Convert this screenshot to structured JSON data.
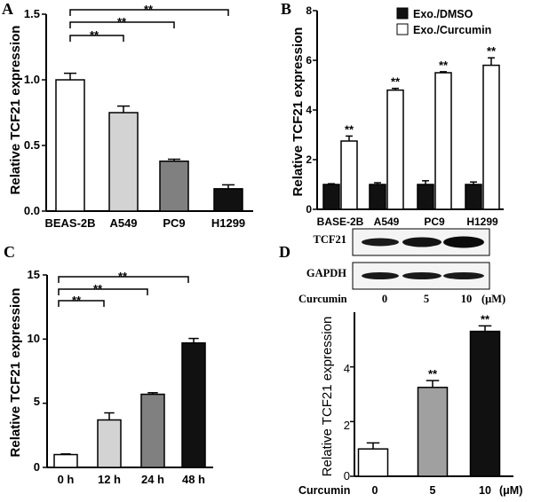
{
  "figure": {
    "panel_letters": [
      "A",
      "B",
      "C",
      "D"
    ]
  },
  "chart_data": [
    {
      "panel": "A",
      "type": "bar",
      "title": "",
      "xlabel": "",
      "ylabel": "Relative TCF21 expression",
      "categories": [
        "BEAS-2B",
        "A549",
        "PC9",
        "H1299"
      ],
      "values": [
        1.0,
        0.75,
        0.38,
        0.17
      ],
      "errors": [
        0.05,
        0.05,
        0.015,
        0.03
      ],
      "colors": [
        "#ffffff",
        "#d3d3d3",
        "#808080",
        "#111111"
      ],
      "ylim": [
        0,
        1.5
      ],
      "yticks": [
        "0.0",
        "0.5",
        "1.0",
        "1.5"
      ],
      "significance": [
        {
          "from": 0,
          "to": 1,
          "label": "**"
        },
        {
          "from": 0,
          "to": 2,
          "label": "**"
        },
        {
          "from": 0,
          "to": 3,
          "label": "**"
        }
      ]
    },
    {
      "panel": "B",
      "type": "bar",
      "title": "",
      "xlabel": "",
      "ylabel": "Relative TCF21 expression",
      "categories": [
        "BASE-2B",
        "A549",
        "PC9",
        "H1299"
      ],
      "ylim": [
        0,
        8
      ],
      "yticks": [
        "0",
        "2",
        "4",
        "6",
        "8"
      ],
      "legend_position": "top-right",
      "series": [
        {
          "name": "Exo./DMSO",
          "color": "#111111",
          "values": [
            1.0,
            1.0,
            1.0,
            1.0
          ],
          "errors": [
            0.03,
            0.07,
            0.15,
            0.1
          ]
        },
        {
          "name": "Exo./Curcumin",
          "color": "#ffffff",
          "values": [
            2.75,
            4.8,
            5.5,
            5.8
          ],
          "errors": [
            0.2,
            0.07,
            0.04,
            0.3
          ]
        }
      ],
      "significance_labels": [
        "**",
        "**",
        "**",
        "**"
      ]
    },
    {
      "panel": "C",
      "type": "bar",
      "title": "",
      "xlabel": "",
      "ylabel": "Relative TCF21 expression",
      "categories": [
        "0 h",
        "12 h",
        "24 h",
        "48 h"
      ],
      "values": [
        1.0,
        3.7,
        5.7,
        9.7
      ],
      "errors": [
        0.05,
        0.55,
        0.12,
        0.35
      ],
      "colors": [
        "#ffffff",
        "#d3d3d3",
        "#808080",
        "#111111"
      ],
      "ylim": [
        0,
        15
      ],
      "yticks": [
        "0",
        "5",
        "10",
        "15"
      ],
      "significance": [
        {
          "from": 0,
          "to": 1,
          "label": "**"
        },
        {
          "from": 0,
          "to": 2,
          "label": "**"
        },
        {
          "from": 0,
          "to": 3,
          "label": "**"
        }
      ]
    },
    {
      "panel": "D",
      "type": "bar",
      "title": "",
      "xlabel": "",
      "ylabel": "Relative TCF21 expression",
      "x_prefix_label": "Curcumin",
      "categories": [
        "0",
        "5",
        "10"
      ],
      "unit_label": "(μM)",
      "values": [
        1.0,
        3.25,
        5.3
      ],
      "errors": [
        0.22,
        0.25,
        0.2
      ],
      "colors": [
        "#ffffff",
        "#a0a0a0",
        "#111111"
      ],
      "ylim": [
        0,
        6
      ],
      "yticks": [
        "0",
        "2",
        "4"
      ],
      "significance_labels": [
        "",
        "**",
        "**"
      ]
    }
  ],
  "western_blot": {
    "bands": [
      "TCF21",
      "GAPDH"
    ],
    "treatment_label": "Curcumin",
    "doses": [
      "0",
      "5",
      "10"
    ],
    "unit_label": "(μM)"
  }
}
